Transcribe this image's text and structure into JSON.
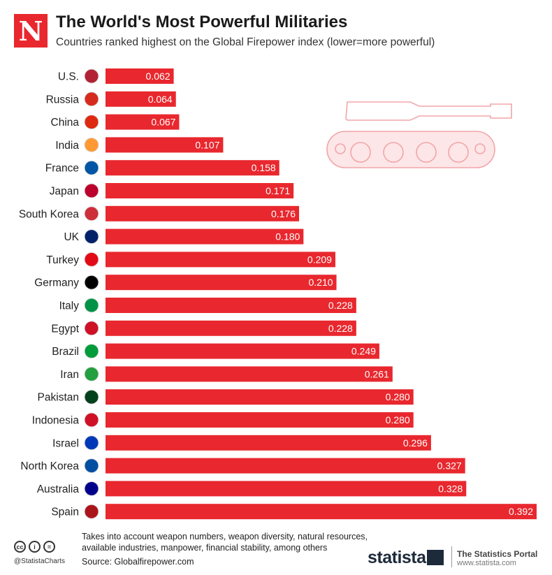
{
  "header": {
    "logo_letter": "N",
    "title": "The World's Most Powerful Militaries",
    "subtitle": "Countries ranked highest on the Global Firepower index (lower=more powerful)"
  },
  "chart_data": {
    "type": "bar",
    "orientation": "horizontal",
    "title": "The World's Most Powerful Militaries",
    "subtitle": "Countries ranked highest on the Global Firepower index (lower=more powerful)",
    "xlabel": "",
    "ylabel": "",
    "grid": false,
    "bar_color": "#e8282e",
    "label_color": "#ffffff",
    "categories": [
      "U.S.",
      "Russia",
      "China",
      "India",
      "France",
      "Japan",
      "South Korea",
      "UK",
      "Turkey",
      "Germany",
      "Italy",
      "Egypt",
      "Brazil",
      "Iran",
      "Pakistan",
      "Indonesia",
      "Israel",
      "North Korea",
      "Australia",
      "Spain"
    ],
    "values": [
      0.062,
      0.064,
      0.067,
      0.107,
      0.158,
      0.171,
      0.176,
      0.18,
      0.209,
      0.21,
      0.228,
      0.228,
      0.249,
      0.261,
      0.28,
      0.28,
      0.296,
      0.327,
      0.328,
      0.392
    ],
    "value_labels": [
      "0.062",
      "0.064",
      "0.067",
      "0.107",
      "0.158",
      "0.171",
      "0.176",
      "0.180",
      "0.209",
      "0.210",
      "0.228",
      "0.228",
      "0.249",
      "0.261",
      "0.280",
      "0.280",
      "0.296",
      "0.327",
      "0.328",
      "0.392"
    ],
    "xlim": [
      0,
      0.392
    ]
  },
  "decoration": {
    "illustration": "tank-icon",
    "color": "#f5b5b8"
  },
  "footer": {
    "note": "Takes into account weapon numbers, weapon diversity, natural resources, available industries, manpower, financial stability, among others",
    "source": "Source: Globalfirepower.com",
    "handle": "@StatistaCharts",
    "brand": "statista",
    "portal": "The Statistics Portal",
    "portal_url": "www.statista.com"
  }
}
